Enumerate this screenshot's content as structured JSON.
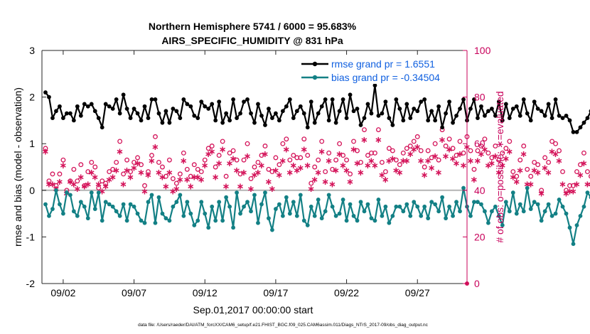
{
  "chart_data": {
    "type": "line",
    "title_line1": "Northern Hemisphere 5741 / 6000 = 95.683%",
    "title_line2": "AIRS_SPECIFIC_HUMIDITY @ 831 hPa",
    "xlabel": "Sep.01,2017 00:00:00 start",
    "ylabel_left": "rmse and bias (model - observation)",
    "ylabel_right": "# of obs: o=possible; ∗=evaluated",
    "footnote": "data file: /Users/raeder/DAI/ATM_forcXX/CAM6_setup/f.e21.FHIST_BGC.f09_025.CAM6assim.011/Diags_NTrS_2017-09/obs_diag_output.nc",
    "xlim": [
      0.5,
      30.5
    ],
    "ylim_left": [
      -2,
      3
    ],
    "ylim_right": [
      0,
      100
    ],
    "x_ticks": [
      2,
      7,
      12,
      17,
      22,
      27
    ],
    "x_tick_labels": [
      "09/02",
      "09/07",
      "09/12",
      "09/17",
      "09/22",
      "09/27"
    ],
    "y_ticks_left": [
      -2,
      -1,
      0,
      1,
      2,
      3
    ],
    "y_ticks_right": [
      0,
      20,
      40,
      60,
      80,
      100
    ],
    "legend": [
      {
        "name": "rmse",
        "label": "rmse grand pr = 1.6551"
      },
      {
        "name": "bias",
        "label": "bias grand pr = -0.34504"
      }
    ],
    "colors": {
      "rmse": "#000000",
      "bias": "#138085",
      "obs": "#d4145a",
      "zero": "#b4b4b4"
    },
    "x_start": 0.75,
    "x_step": 0.25,
    "series": [
      {
        "name": "rmse",
        "values": [
          2.1,
          2.0,
          1.55,
          1.7,
          1.8,
          1.55,
          1.65,
          1.65,
          1.5,
          1.8,
          1.6,
          1.85,
          1.8,
          1.85,
          1.7,
          1.55,
          1.35,
          1.85,
          1.8,
          1.75,
          1.95,
          1.65,
          2.05,
          1.75,
          1.55,
          1.75,
          1.65,
          1.5,
          1.8,
          1.55,
          1.95,
          1.95,
          1.65,
          1.45,
          1.7,
          1.45,
          1.75,
          1.7,
          1.55,
          1.95,
          1.85,
          1.8,
          1.6,
          1.55,
          1.9,
          1.8,
          1.75,
          1.85,
          1.5,
          1.9,
          1.45,
          1.65,
          1.5,
          1.95,
          1.55,
          1.65,
          1.9,
          1.95,
          1.65,
          1.45,
          1.85,
          1.6,
          1.4,
          1.75,
          1.55,
          1.65,
          1.5,
          1.7,
          1.8,
          1.95,
          1.55,
          1.7,
          1.8,
          1.65,
          1.35,
          1.9,
          1.45,
          1.65,
          1.8,
          1.95,
          1.5,
          1.95,
          1.45,
          1.7,
          1.95,
          1.55,
          2.05,
          1.7,
          1.75,
          1.4,
          1.55,
          1.85,
          1.65,
          2.25,
          1.6,
          1.65,
          1.9,
          1.55,
          1.4,
          1.95,
          1.75,
          1.5,
          1.85,
          1.55,
          1.75,
          1.7,
          1.9,
          1.95,
          1.5,
          1.7,
          1.5,
          1.8,
          1.35,
          1.65,
          1.9,
          1.45,
          1.6,
          1.75,
          1.95,
          1.5,
          1.75,
          1.95,
          1.55,
          1.8,
          1.6,
          1.7,
          1.75,
          1.6,
          1.9,
          1.5,
          1.85,
          1.55,
          1.75,
          1.8,
          1.6,
          1.95,
          1.65,
          1.5,
          1.9,
          1.75,
          1.7,
          1.6,
          1.85,
          1.55,
          1.95,
          1.6,
          1.55,
          1.6,
          1.5,
          1.25,
          1.25,
          1.35,
          1.45,
          1.55,
          1.7,
          1.55,
          1.6,
          1.45,
          1.55,
          1.65,
          1.4,
          1.75,
          1.7,
          1.45,
          1.85,
          1.45,
          1.4,
          1.5
        ]
      },
      {
        "name": "bias",
        "values": [
          -0.3,
          -0.55,
          -0.4,
          0.0,
          -0.3,
          -0.5,
          -0.05,
          -0.1,
          -0.45,
          -0.55,
          -0.25,
          -0.35,
          -0.6,
          -0.05,
          -0.4,
          -0.05,
          -0.65,
          -0.25,
          -0.3,
          -0.35,
          -0.45,
          -0.55,
          -0.3,
          -0.65,
          -0.3,
          -0.35,
          -0.5,
          -0.65,
          -0.7,
          -0.25,
          -0.1,
          -0.7,
          -0.15,
          -0.5,
          -0.6,
          -0.65,
          -0.35,
          -0.25,
          -0.1,
          -0.55,
          -0.25,
          -0.5,
          -0.75,
          -0.65,
          -0.25,
          -0.5,
          -0.8,
          -0.35,
          -0.65,
          -0.25,
          -0.65,
          -0.15,
          -0.35,
          -0.8,
          -0.05,
          -0.5,
          -0.35,
          -0.25,
          -0.45,
          -0.1,
          -0.7,
          -0.3,
          -0.05,
          -0.6,
          -0.85,
          -0.4,
          -0.3,
          -0.55,
          -0.15,
          -0.5,
          -0.25,
          -0.55,
          -0.1,
          -0.65,
          -0.75,
          -0.35,
          -0.55,
          -0.2,
          -0.6,
          -0.45,
          -0.1,
          -0.35,
          -0.55,
          -0.5,
          -0.2,
          -0.65,
          -0.3,
          -0.55,
          -0.65,
          -0.25,
          -0.45,
          -0.3,
          -0.6,
          -0.65,
          -0.2,
          -0.55,
          -0.35,
          -0.7,
          -0.55,
          -0.35,
          -0.35,
          -0.45,
          -0.3,
          -0.55,
          -0.25,
          -0.35,
          -0.55,
          -0.35,
          -0.6,
          -0.25,
          -0.3,
          -0.45,
          -0.15,
          -0.6,
          -0.35,
          -0.55,
          -0.25,
          -0.45,
          0.05,
          -0.35,
          -0.55,
          -0.25,
          -0.25,
          -0.3,
          -0.45,
          -0.7,
          -0.45,
          -0.35,
          -0.55,
          -0.75,
          -0.25,
          -0.45,
          -0.05,
          -0.5,
          -0.3,
          -0.45,
          0.05,
          -0.4,
          -0.25,
          -0.3,
          -0.65,
          -0.45,
          -0.3,
          -0.55,
          -0.5,
          -0.2,
          -0.35,
          -0.5,
          -0.8,
          -1.15,
          -0.75,
          -0.55,
          -0.35,
          -0.05,
          -0.15,
          0.0,
          -0.45,
          -0.2,
          -0.5,
          0.05,
          -0.3,
          -0.45,
          -0.35,
          -0.5,
          -0.7,
          -0.35,
          -0.05,
          -0.55,
          -0.6,
          -0.8,
          -0.25,
          0.1
        ]
      },
      {
        "name": "obs_possible",
        "values": [
          58,
          44,
          47,
          42,
          47,
          53,
          40,
          44,
          49,
          44,
          51,
          42,
          48,
          52,
          50,
          41,
          44,
          43,
          48,
          49,
          52,
          61,
          47,
          53,
          48,
          52,
          54,
          51,
          42,
          48,
          55,
          63,
          52,
          50,
          46,
          53,
          45,
          43,
          47,
          56,
          49,
          46,
          51,
          49,
          48,
          53,
          58,
          59,
          50,
          55,
          61,
          46,
          56,
          57,
          53,
          47,
          53,
          60,
          45,
          50,
          52,
          55,
          59,
          49,
          48,
          54,
          51,
          60,
          62,
          53,
          55,
          54,
          54,
          62,
          55,
          43,
          50,
          53,
          61,
          48,
          56,
          49,
          53,
          60,
          55,
          53,
          47,
          61,
          57,
          52,
          66,
          55,
          56,
          56,
          66,
          52,
          48,
          58,
          57,
          53,
          51,
          56,
          58,
          59,
          61,
          63,
          57,
          50,
          57,
          54,
          60,
          53,
          66,
          59,
          62,
          58,
          55,
          61,
          56,
          63,
          57,
          49,
          57,
          59,
          62,
          56,
          54,
          59,
          53,
          56,
          58,
          61,
          48,
          46,
          53,
          59,
          49,
          46,
          52,
          51,
          40,
          54,
          52,
          61,
          60,
          57,
          48,
          40,
          42,
          42,
          48,
          51,
          56,
          48,
          46,
          49,
          58,
          48,
          51,
          55,
          57,
          50,
          46,
          55,
          48,
          52
        ]
      },
      {
        "name": "obs_evaluated",
        "values": [
          57,
          43,
          43,
          41,
          44,
          51,
          39,
          44,
          43,
          41,
          46,
          42,
          43,
          48,
          46,
          43,
          40,
          42,
          45,
          46,
          49,
          57,
          43,
          49,
          46,
          50,
          52,
          48,
          40,
          47,
          53,
          59,
          48,
          46,
          42,
          48,
          40,
          41,
          45,
          53,
          45,
          42,
          46,
          46,
          45,
          51,
          56,
          57,
          46,
          52,
          58,
          42,
          52,
          54,
          49,
          42,
          48,
          55,
          41,
          47,
          48,
          51,
          56,
          44,
          41,
          49,
          47,
          53,
          58,
          48,
          51,
          49,
          50,
          58,
          51,
          41,
          45,
          48,
          57,
          44,
          53,
          43,
          49,
          56,
          51,
          49,
          44,
          58,
          52,
          48,
          62,
          51,
          53,
          51,
          62,
          47,
          45,
          53,
          54,
          49,
          48,
          53,
          53,
          56,
          58,
          59,
          53,
          47,
          53,
          50,
          55,
          48,
          62,
          55,
          58,
          54,
          52,
          56,
          51,
          59,
          53,
          45,
          53,
          56,
          58,
          51,
          52,
          55,
          48,
          51,
          54,
          57,
          46,
          44,
          49,
          56,
          43,
          43,
          49,
          48,
          39,
          50,
          48,
          57,
          56,
          53,
          43,
          39,
          40,
          40,
          43,
          47,
          52,
          43,
          43,
          46,
          55,
          43,
          47,
          51,
          53,
          45,
          43,
          51,
          45,
          48
        ]
      }
    ]
  }
}
